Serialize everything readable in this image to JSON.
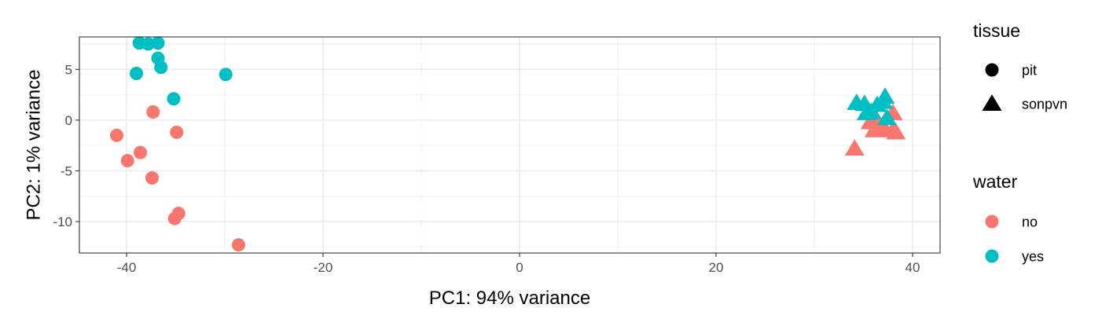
{
  "chart_data": {
    "type": "scatter",
    "title": "",
    "xlabel": "PC1: 94% variance",
    "ylabel": "PC2: 1% variance",
    "xlim": [
      -44.8,
      42.8
    ],
    "ylim": [
      -13.1,
      8.2
    ],
    "xticks": [
      -40,
      -20,
      0,
      20,
      40
    ],
    "xtick_labels": [
      "-40",
      "-20",
      "0",
      "20",
      "40"
    ],
    "yticks": [
      -10,
      -5,
      0,
      5
    ],
    "ytick_labels": [
      "-10",
      "-5",
      "0",
      "5"
    ],
    "grid": true,
    "legend_position": "right",
    "legends": [
      {
        "title": "tissue",
        "aesthetic": "shape",
        "entries": [
          {
            "label": "pit",
            "shape": "circle"
          },
          {
            "label": "sonpvn",
            "shape": "triangle"
          }
        ]
      },
      {
        "title": "water",
        "aesthetic": "color",
        "entries": [
          {
            "label": "no",
            "color": "#F8766D"
          },
          {
            "label": "yes",
            "color": "#00BFC4"
          }
        ]
      }
    ],
    "points": [
      {
        "x": -38.7,
        "y": 7.6,
        "tissue": "pit",
        "water": "yes"
      },
      {
        "x": -37.8,
        "y": 7.5,
        "tissue": "pit",
        "water": "yes"
      },
      {
        "x": -36.8,
        "y": 7.6,
        "tissue": "pit",
        "water": "yes"
      },
      {
        "x": -36.8,
        "y": 6.1,
        "tissue": "pit",
        "water": "yes"
      },
      {
        "x": -36.5,
        "y": 5.2,
        "tissue": "pit",
        "water": "yes"
      },
      {
        "x": -39.0,
        "y": 4.6,
        "tissue": "pit",
        "water": "yes"
      },
      {
        "x": -29.9,
        "y": 4.5,
        "tissue": "pit",
        "water": "yes"
      },
      {
        "x": -35.2,
        "y": 2.1,
        "tissue": "pit",
        "water": "yes"
      },
      {
        "x": -37.3,
        "y": 0.8,
        "tissue": "pit",
        "water": "no"
      },
      {
        "x": -34.9,
        "y": -1.2,
        "tissue": "pit",
        "water": "no"
      },
      {
        "x": -41.0,
        "y": -1.5,
        "tissue": "pit",
        "water": "no"
      },
      {
        "x": -38.6,
        "y": -3.2,
        "tissue": "pit",
        "water": "no"
      },
      {
        "x": -39.9,
        "y": -4.0,
        "tissue": "pit",
        "water": "no"
      },
      {
        "x": -37.4,
        "y": -5.7,
        "tissue": "pit",
        "water": "no"
      },
      {
        "x": -34.7,
        "y": -9.2,
        "tissue": "pit",
        "water": "no"
      },
      {
        "x": -35.1,
        "y": -9.7,
        "tissue": "pit",
        "water": "no"
      },
      {
        "x": -28.6,
        "y": -12.3,
        "tissue": "pit",
        "water": "no"
      },
      {
        "x": 34.1,
        "y": -2.8,
        "tissue": "sonpvn",
        "water": "no"
      },
      {
        "x": 35.7,
        "y": -0.2,
        "tissue": "sonpvn",
        "water": "no"
      },
      {
        "x": 36.2,
        "y": 0.3,
        "tissue": "sonpvn",
        "water": "no"
      },
      {
        "x": 36.1,
        "y": -1.0,
        "tissue": "sonpvn",
        "water": "no"
      },
      {
        "x": 36.6,
        "y": -0.6,
        "tissue": "sonpvn",
        "water": "no"
      },
      {
        "x": 37.2,
        "y": -0.9,
        "tissue": "sonpvn",
        "water": "no"
      },
      {
        "x": 38.0,
        "y": 0.7,
        "tissue": "sonpvn",
        "water": "no"
      },
      {
        "x": 38.0,
        "y": -1.0,
        "tissue": "sonpvn",
        "water": "no"
      },
      {
        "x": 38.3,
        "y": -1.2,
        "tissue": "sonpvn",
        "water": "no"
      },
      {
        "x": 34.3,
        "y": 1.7,
        "tissue": "sonpvn",
        "water": "yes"
      },
      {
        "x": 35.1,
        "y": 1.6,
        "tissue": "sonpvn",
        "water": "yes"
      },
      {
        "x": 35.3,
        "y": 0.7,
        "tissue": "sonpvn",
        "water": "yes"
      },
      {
        "x": 35.8,
        "y": 0.8,
        "tissue": "sonpvn",
        "water": "yes"
      },
      {
        "x": 36.4,
        "y": 1.5,
        "tissue": "sonpvn",
        "water": "yes"
      },
      {
        "x": 37.0,
        "y": 1.8,
        "tissue": "sonpvn",
        "water": "yes"
      },
      {
        "x": 37.2,
        "y": 2.3,
        "tissue": "sonpvn",
        "water": "yes"
      },
      {
        "x": 37.4,
        "y": 0.2,
        "tissue": "sonpvn",
        "water": "yes"
      }
    ]
  }
}
